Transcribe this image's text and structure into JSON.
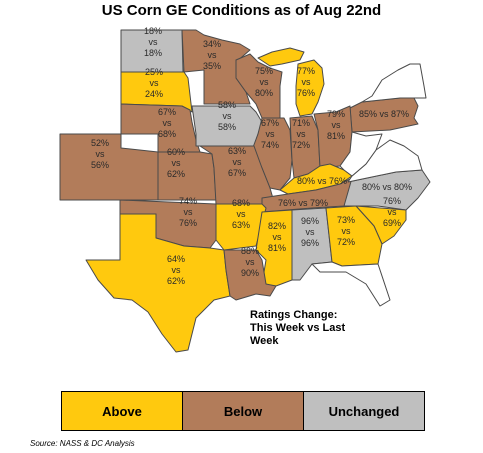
{
  "title": "US Corn GE Conditions as of Aug 22nd",
  "colors": {
    "above": "#ffc90e",
    "below": "#b27c5a",
    "unchanged": "#bfbfbf"
  },
  "states": [
    {
      "id": "ND",
      "category": "unchanged",
      "lines": [
        "18%",
        "vs",
        "18%"
      ]
    },
    {
      "id": "MN",
      "category": "below",
      "lines": [
        "34%",
        "vs",
        "35%"
      ]
    },
    {
      "id": "SD",
      "category": "above",
      "lines": [
        "25%",
        "vs",
        "24%"
      ]
    },
    {
      "id": "WI",
      "category": "below",
      "lines": [
        "75%",
        "vs",
        "80%"
      ]
    },
    {
      "id": "MI",
      "category": "above",
      "lines": [
        "77%",
        "vs",
        "76%"
      ]
    },
    {
      "id": "NE",
      "category": "below",
      "lines": [
        "67%",
        "vs",
        "68%"
      ]
    },
    {
      "id": "IA",
      "category": "unchanged",
      "lines": [
        "58%",
        "vs",
        "58%"
      ]
    },
    {
      "id": "PA",
      "category": "below",
      "lines": [
        "85% vs 87%"
      ]
    },
    {
      "id": "CO",
      "category": "below",
      "lines": [
        "52%",
        "vs",
        "56%"
      ]
    },
    {
      "id": "IL",
      "category": "below",
      "lines": [
        "67%",
        "vs",
        "74%"
      ]
    },
    {
      "id": "IN",
      "category": "below",
      "lines": [
        "71%",
        "vs",
        "72%"
      ]
    },
    {
      "id": "OH",
      "category": "below",
      "lines": [
        "79%",
        "vs",
        "81%"
      ]
    },
    {
      "id": "KS",
      "category": "below",
      "lines": [
        "60%",
        "vs",
        "62%"
      ]
    },
    {
      "id": "MO",
      "category": "below",
      "lines": [
        "63%",
        "vs",
        "67%"
      ]
    },
    {
      "id": "KY",
      "category": "above",
      "lines": [
        "80% vs 76%"
      ]
    },
    {
      "id": "NC",
      "category": "unchanged",
      "lines": [
        "80% vs 80%"
      ]
    },
    {
      "id": "TN",
      "category": "below",
      "lines": [
        "76% vs 79%"
      ]
    },
    {
      "id": "OK",
      "category": "below",
      "lines": [
        "74%",
        "vs",
        "76%"
      ]
    },
    {
      "id": "AR",
      "category": "above",
      "lines": [
        "68%",
        "vs",
        "63%"
      ]
    },
    {
      "id": "SC",
      "category": "above",
      "lines": [
        "76%",
        "vs",
        "69%"
      ]
    },
    {
      "id": "MS",
      "category": "above",
      "lines": [
        "82%",
        "vs",
        "81%"
      ]
    },
    {
      "id": "AL",
      "category": "unchanged",
      "lines": [
        "96%",
        "vs",
        "96%"
      ]
    },
    {
      "id": "GA",
      "category": "above",
      "lines": [
        "73%",
        "vs",
        "72%"
      ]
    },
    {
      "id": "TX",
      "category": "above",
      "lines": [
        "64%",
        "vs",
        "62%"
      ]
    },
    {
      "id": "LA",
      "category": "below",
      "lines": [
        "88%",
        "vs",
        "90%"
      ]
    }
  ],
  "note": [
    "Ratings Change:",
    "This Week vs Last",
    "Week"
  ],
  "legend": {
    "above": "Above",
    "below": "Below",
    "unchanged": "Unchanged"
  },
  "source": "Source: NASS & DC Analysis"
}
